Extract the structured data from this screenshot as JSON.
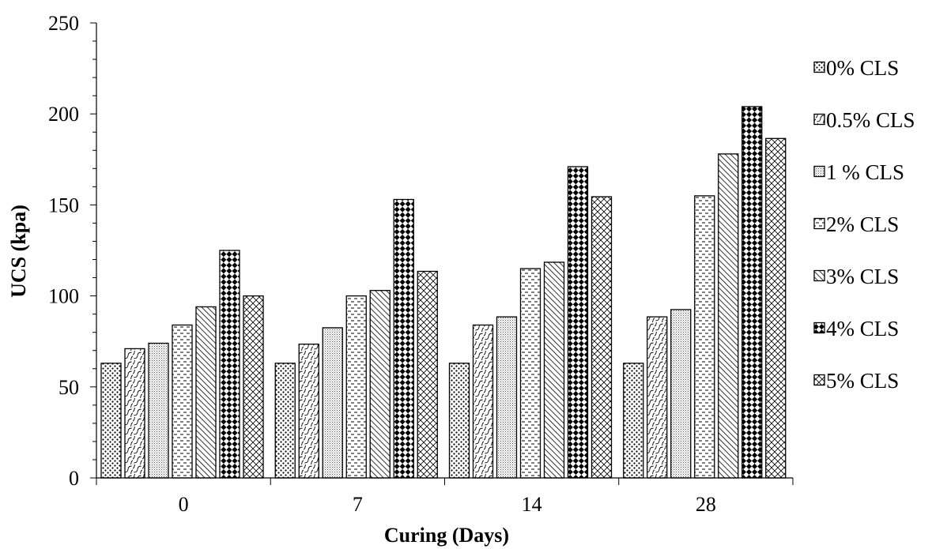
{
  "chart_data": {
    "type": "bar",
    "title": "",
    "xlabel": "Curing (Days)",
    "ylabel": "UCS (kpa)",
    "ylim": [
      0,
      250
    ],
    "y_ticks": [
      0,
      50,
      100,
      150,
      200,
      250
    ],
    "grid": false,
    "legend_position": "right",
    "categories": [
      "0",
      "7",
      "14",
      "28"
    ],
    "series": [
      {
        "name": "0% CLS",
        "pattern": "dots",
        "values": [
          63,
          63,
          63,
          63
        ]
      },
      {
        "name": "0.5% CLS",
        "pattern": "waves",
        "values": [
          71,
          73.5,
          84,
          88.5
        ]
      },
      {
        "name": "1 % CLS",
        "pattern": "fine-grid",
        "values": [
          74,
          82.5,
          88.5,
          92.5
        ]
      },
      {
        "name": "2% CLS",
        "pattern": "dashes",
        "values": [
          84,
          100,
          115,
          155
        ]
      },
      {
        "name": "3% CLS",
        "pattern": "diagonal",
        "values": [
          94,
          103,
          118.5,
          178
        ]
      },
      {
        "name": "4% CLS",
        "pattern": "checker",
        "values": [
          125,
          153,
          171,
          204
        ]
      },
      {
        "name": "5% CLS",
        "pattern": "crosshatch",
        "values": [
          100,
          113.5,
          154.5,
          186.5
        ]
      }
    ]
  }
}
